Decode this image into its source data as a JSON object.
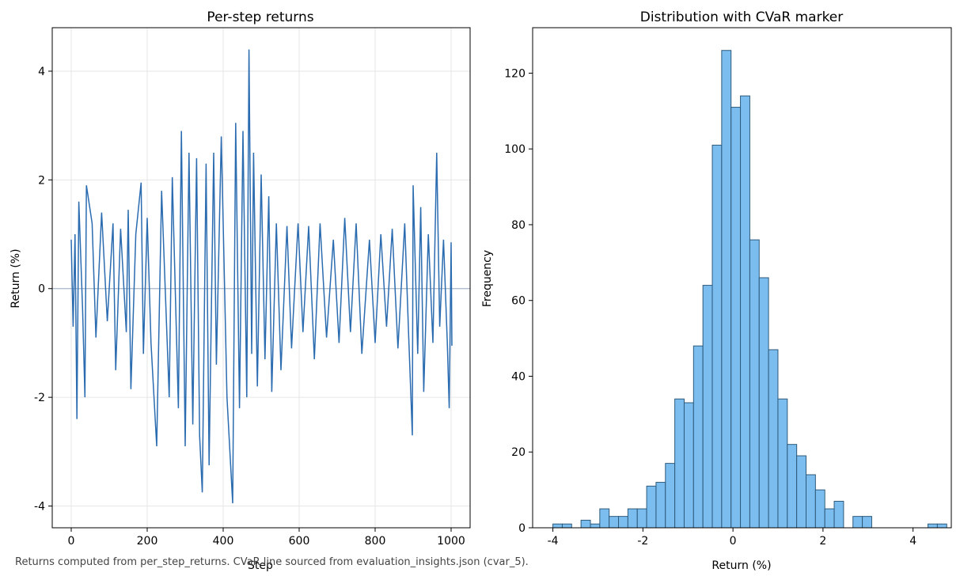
{
  "caption": "Returns computed from per_step_returns. CVaR line sourced from evaluation_insights.json (cvar_5).",
  "colors": {
    "line": "#2b6cb0",
    "hist_fill": "#7cbdf0",
    "hist_edge": "#2d5a7b",
    "zero_line": "#9aaac4",
    "grid": "#e6e6e6"
  },
  "chart_data": [
    {
      "type": "line",
      "title": "Per-step returns",
      "xlabel": "Step",
      "ylabel": "Return (%)",
      "xlim": [
        -50,
        1050
      ],
      "ylim": [
        -4.4,
        4.8
      ],
      "xticks": [
        0,
        200,
        400,
        600,
        800,
        1000
      ],
      "yticks": [
        -4,
        -2,
        0,
        2,
        4
      ],
      "grid": true,
      "zero_line": 0,
      "series": [
        {
          "points": [
            [
              0,
              0.9
            ],
            [
              5,
              -0.7
            ],
            [
              10,
              1.0
            ],
            [
              15,
              -2.4
            ],
            [
              20,
              1.6
            ],
            [
              30,
              -0.4
            ],
            [
              36,
              -2.0
            ],
            [
              40,
              1.9
            ],
            [
              55,
              1.2
            ],
            [
              65,
              -0.9
            ],
            [
              80,
              1.4
            ],
            [
              95,
              -0.6
            ],
            [
              110,
              1.2
            ],
            [
              117,
              -1.5
            ],
            [
              130,
              1.1
            ],
            [
              145,
              -0.8
            ],
            [
              150,
              1.45
            ],
            [
              157,
              -1.85
            ],
            [
              170,
              1.0
            ],
            [
              184,
              1.95
            ],
            [
              190,
              -1.2
            ],
            [
              200,
              1.3
            ],
            [
              210,
              -1.0
            ],
            [
              225,
              -2.9
            ],
            [
              238,
              1.8
            ],
            [
              258,
              -2.0
            ],
            [
              266,
              2.05
            ],
            [
              282,
              -2.2
            ],
            [
              290,
              2.9
            ],
            [
              300,
              -2.9
            ],
            [
              310,
              2.5
            ],
            [
              320,
              -2.5
            ],
            [
              330,
              2.4
            ],
            [
              338,
              -2.7
            ],
            [
              345,
              -3.75
            ],
            [
              355,
              2.3
            ],
            [
              363,
              -3.25
            ],
            [
              375,
              2.5
            ],
            [
              382,
              -1.4
            ],
            [
              395,
              2.8
            ],
            [
              410,
              -2.0
            ],
            [
              425,
              -3.95
            ],
            [
              433,
              3.05
            ],
            [
              443,
              -2.2
            ],
            [
              452,
              2.9
            ],
            [
              462,
              -2.0
            ],
            [
              468,
              4.4
            ],
            [
              475,
              -1.2
            ],
            [
              480,
              2.5
            ],
            [
              490,
              -1.8
            ],
            [
              500,
              2.1
            ],
            [
              510,
              -1.3
            ],
            [
              520,
              1.7
            ],
            [
              528,
              -1.9
            ],
            [
              540,
              1.2
            ],
            [
              552,
              -1.5
            ],
            [
              568,
              1.15
            ],
            [
              580,
              -1.1
            ],
            [
              597,
              1.2
            ],
            [
              610,
              -0.8
            ],
            [
              625,
              1.15
            ],
            [
              640,
              -1.3
            ],
            [
              655,
              1.2
            ],
            [
              672,
              -0.9
            ],
            [
              690,
              0.9
            ],
            [
              705,
              -1.0
            ],
            [
              720,
              1.3
            ],
            [
              735,
              -0.8
            ],
            [
              750,
              1.2
            ],
            [
              765,
              -1.2
            ],
            [
              785,
              0.9
            ],
            [
              800,
              -1.0
            ],
            [
              815,
              1.0
            ],
            [
              830,
              -0.7
            ],
            [
              845,
              1.1
            ],
            [
              860,
              -1.1
            ],
            [
              878,
              1.2
            ],
            [
              888,
              -0.8
            ],
            [
              898,
              -2.7
            ],
            [
              900,
              1.9
            ],
            [
              912,
              -1.2
            ],
            [
              920,
              1.5
            ],
            [
              928,
              -1.9
            ],
            [
              940,
              1.0
            ],
            [
              952,
              -1.0
            ],
            [
              962,
              2.5
            ],
            [
              970,
              -0.7
            ],
            [
              980,
              0.9
            ],
            [
              990,
              -1.0
            ],
            [
              995,
              -2.2
            ],
            [
              1000,
              0.85
            ],
            [
              1002,
              -1.05
            ]
          ]
        }
      ]
    },
    {
      "type": "bar",
      "title": "Distribution with CVaR marker",
      "xlabel": "Return (%)",
      "ylabel": "Frequency",
      "xlim": [
        -4.45,
        4.85
      ],
      "ylim": [
        0,
        132
      ],
      "xticks": [
        -4,
        -2,
        0,
        2,
        4
      ],
      "yticks": [
        0,
        20,
        40,
        60,
        80,
        100,
        120
      ],
      "grid": false,
      "bin_start": -4.0,
      "bin_width": 0.2083,
      "counts": [
        1,
        1,
        0,
        2,
        1,
        5,
        3,
        3,
        5,
        5,
        11,
        12,
        17,
        34,
        33,
        48,
        64,
        101,
        126,
        111,
        114,
        76,
        66,
        47,
        34,
        22,
        19,
        14,
        10,
        5,
        7,
        0,
        3,
        3,
        0,
        0,
        0,
        0,
        0,
        0,
        1,
        1
      ]
    }
  ]
}
